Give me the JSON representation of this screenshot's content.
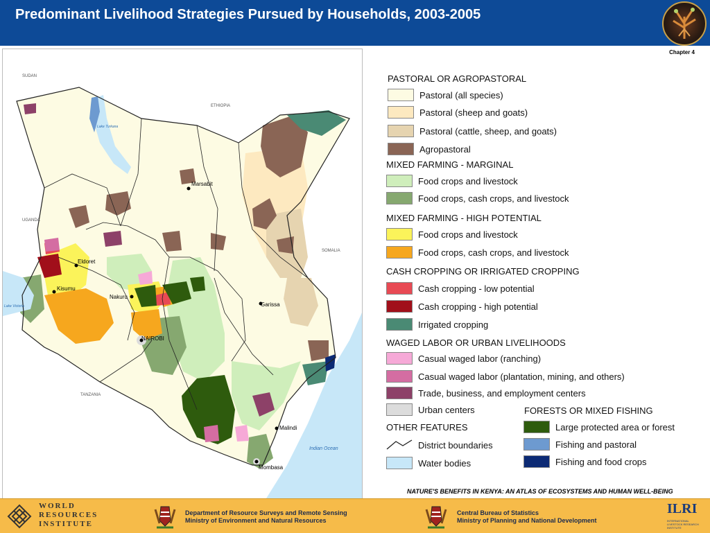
{
  "header": {
    "title": "Predominant Livelihood Strategies Pursued by Households, 2003-2005",
    "logo_icon": "atlas-cover-logo"
  },
  "chapter": "Chapter 4",
  "map": {
    "countries": [
      "SUDAN",
      "ETHIOPIA",
      "UGANDA",
      "SOMALIA",
      "TANZANIA"
    ],
    "water_labels": {
      "lake_turkana": "Lake Turkana",
      "lake_victoria": "Lake Victoria",
      "ocean": "Indian Ocean"
    },
    "cities": [
      "Marsabit",
      "Eldoret",
      "Kisumu",
      "Nakuru",
      "Garissa",
      "NAIROBI",
      "Malindi",
      "Mombasa"
    ],
    "colors": {
      "pastoral_all": "#fdfbe3",
      "pastoral_sheep_goats": "#fde9c0",
      "pastoral_cattle": "#e6d4b0",
      "agropastoral": "#8a6555",
      "marginal_food": "#cfeebb",
      "marginal_cash": "#86a870",
      "high_food": "#fbf35a",
      "high_cash": "#f6a71e",
      "cash_low": "#e84a54",
      "cash_high": "#a10f1a",
      "irrigated": "#4a8a74",
      "waged_ranching": "#f6a9d7",
      "waged_plantation": "#d46da2",
      "trade": "#8d4168",
      "urban": "#dcdcdc",
      "forest": "#2e5b0d",
      "fishing_pastoral": "#6d9ad0",
      "fishing_food": "#0c2a74",
      "water": "#c7e7f8",
      "outside": "#ffffff",
      "boundary": "#222222"
    }
  },
  "legend": {
    "pastoral": {
      "heading": "PASTORAL OR AGROPASTORAL",
      "items": [
        "Pastoral (all species)",
        "Pastoral (sheep and goats)",
        "Pastoral (cattle, sheep, and goats)",
        "Agropastoral"
      ]
    },
    "marginal": {
      "heading": "MIXED FARMING - MARGINAL",
      "items": [
        "Food crops and livestock",
        "Food crops, cash crops, and livestock"
      ]
    },
    "high": {
      "heading": "MIXED FARMING - HIGH POTENTIAL",
      "items": [
        "Food crops and livestock",
        "Food crops, cash crops, and livestock"
      ]
    },
    "cash": {
      "heading": "CASH CROPPING OR IRRIGATED CROPPING",
      "items": [
        "Cash cropping - low potential",
        "Cash cropping - high potential",
        "Irrigated cropping"
      ]
    },
    "waged": {
      "heading": "WAGED LABOR OR URBAN LIVELIHOODS",
      "items": [
        "Casual waged labor (ranching)",
        "Casual waged labor (plantation, mining, and others)",
        "Trade, business, and employment centers",
        "Urban centers"
      ]
    },
    "other": {
      "heading": "OTHER FEATURES",
      "items": [
        "District boundaries",
        "Water bodies"
      ]
    },
    "forests": {
      "heading": "FORESTS OR MIXED FISHING",
      "items": [
        "Large protected area or forest",
        "Fishing and pastoral",
        "Fishing and food crops"
      ]
    }
  },
  "citation": "NATURE'S BENEFITS IN KENYA: AN ATLAS OF ECOSYSTEMS AND HUMAN WELL-BEING",
  "footer": {
    "wri": [
      "WORLD",
      "RESOURCES",
      "INSTITUTE"
    ],
    "drsrs": [
      "Department of Resource Surveys and Remote Sensing",
      "Ministry of Environment and Natural Resources"
    ],
    "cbs": [
      "Central Bureau of Statistics",
      "Ministry of Planning and National Development"
    ],
    "ilri": "ILRI",
    "ilri_sub": [
      "INTERNATIONAL",
      "LIVESTOCK RESEARCH",
      "INSTITUTE"
    ],
    "wri_logo_icon": "wri-knot-logo",
    "crest_icon": "kenya-coat-of-arms-icon"
  }
}
